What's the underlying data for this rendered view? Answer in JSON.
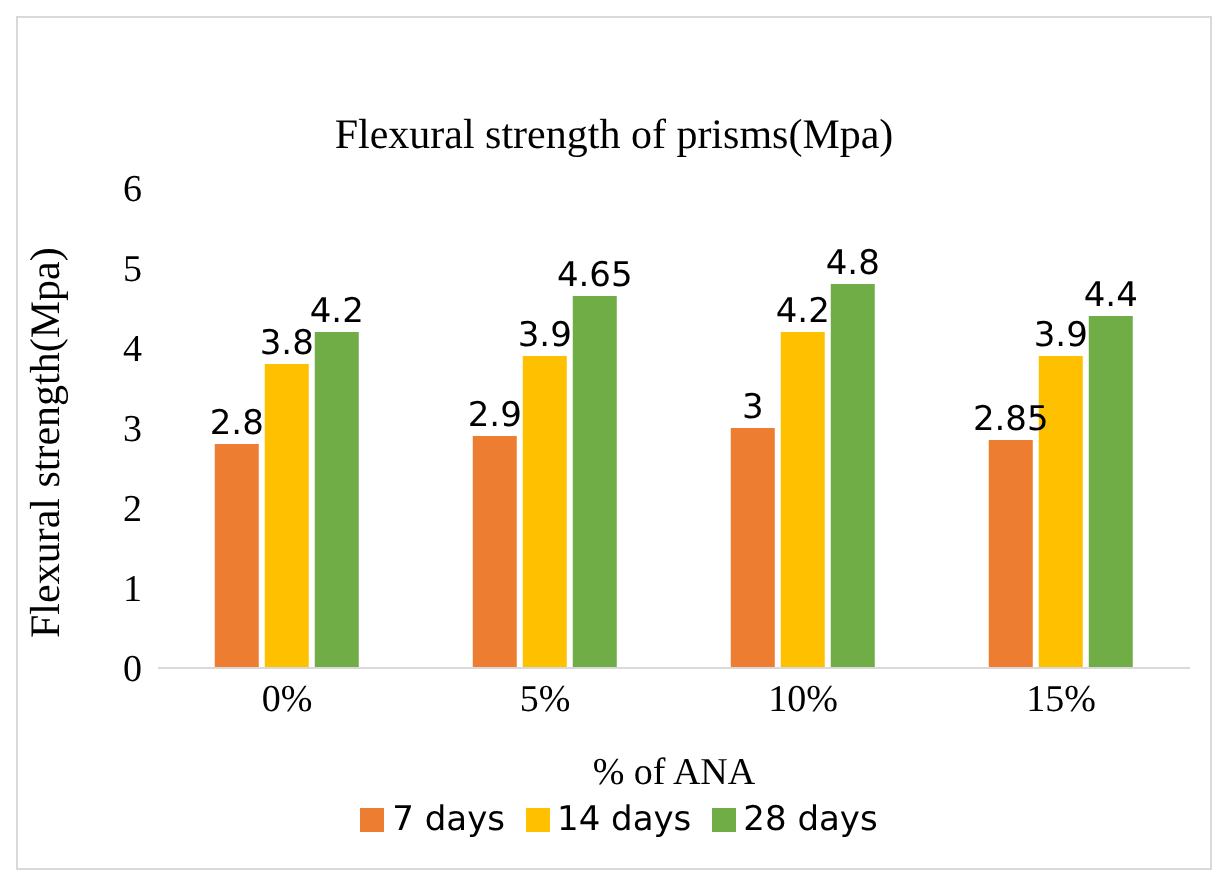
{
  "chart_data": {
    "type": "bar",
    "title": "Flexural strength of prisms(Mpa)",
    "xlabel": "% of ANA",
    "ylabel": "Flexural strength(Mpa)",
    "categories": [
      "0%",
      "5%",
      "10%",
      "15%"
    ],
    "series": [
      {
        "name": "7 days",
        "color": "#ed7d31",
        "values": [
          2.8,
          2.9,
          3,
          2.85
        ]
      },
      {
        "name": "14 days",
        "color": "#ffc000",
        "values": [
          3.8,
          3.9,
          4.2,
          3.9
        ]
      },
      {
        "name": "28 days",
        "color": "#70ad47",
        "values": [
          4.2,
          4.65,
          4.8,
          4.4
        ]
      }
    ],
    "ylim": [
      0,
      6
    ],
    "yticks": [
      0,
      1,
      2,
      3,
      4,
      5,
      6
    ],
    "data_labels": true,
    "legend": "bottom",
    "grid": false
  }
}
